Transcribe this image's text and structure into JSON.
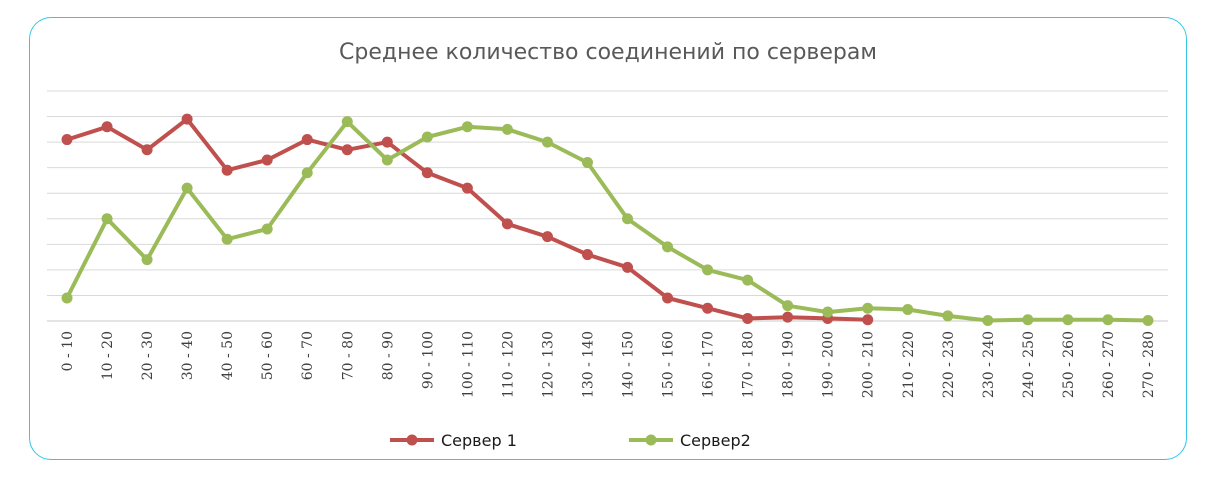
{
  "chart_data": {
    "type": "line",
    "title": "Среднее количество соединений по серверам",
    "categories": [
      "0 - 10",
      "10 - 20",
      "20 - 30",
      "30 - 40",
      "40 - 50",
      "50 - 60",
      "60 - 70",
      "70 - 80",
      "80 - 90",
      "90 - 100",
      "100 - 110",
      "110 - 120",
      "120 - 130",
      "130 - 140",
      "140 - 150",
      "150 - 160",
      "160 - 170",
      "170 - 180",
      "180 - 190",
      "190 - 200",
      "200 - 210",
      "210 - 220",
      "220 - 230",
      "230 - 240",
      "240 - 250",
      "250 - 260",
      "260 - 270",
      "270 - 280"
    ],
    "ylim": [
      0,
      9
    ],
    "grid": true,
    "legend_position": "bottom",
    "series": [
      {
        "name": "Сервер 1",
        "color": "#c0504d",
        "values": [
          7.1,
          7.6,
          6.7,
          7.9,
          5.9,
          6.3,
          7.1,
          6.7,
          7.0,
          5.8,
          5.2,
          3.8,
          3.3,
          2.6,
          2.1,
          0.9,
          0.5,
          0.1,
          0.15,
          0.1,
          0.05,
          null,
          null,
          null,
          null,
          null,
          null,
          null
        ]
      },
      {
        "name": "Сервер2",
        "color": "#9bbb59",
        "values": [
          0.9,
          4.0,
          2.4,
          5.2,
          3.2,
          3.6,
          5.8,
          7.8,
          6.3,
          7.2,
          7.6,
          7.5,
          7.0,
          6.2,
          4.0,
          2.9,
          2.0,
          1.6,
          0.6,
          0.35,
          0.5,
          0.45,
          0.2,
          0.02,
          0.05,
          0.05,
          0.05,
          0.02
        ]
      }
    ]
  }
}
